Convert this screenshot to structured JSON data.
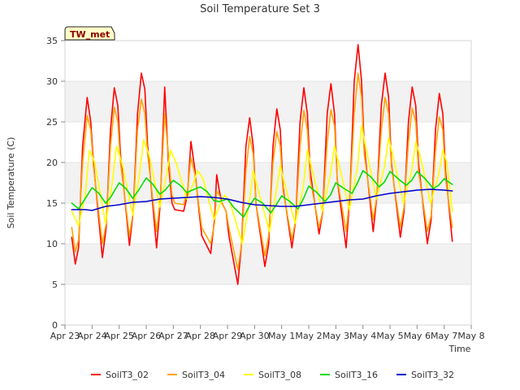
{
  "chart_data": {
    "type": "line",
    "title": "Soil Temperature Set 3",
    "xlabel": "Time",
    "ylabel": "Soil Temperature (C)",
    "badge": "TW_met",
    "xlim": [
      0,
      15
    ],
    "ylim": [
      0,
      35
    ],
    "x_ticks": [
      0,
      1,
      2,
      3,
      4,
      5,
      6,
      7,
      8,
      9,
      10,
      11,
      12,
      13,
      14,
      15
    ],
    "x_tick_labels": [
      "Apr 23",
      "Apr 24",
      "Apr 25",
      "Apr 26",
      "Apr 27",
      "Apr 28",
      "Apr 29",
      "Apr 30",
      "May 1",
      "May 2",
      "May 3",
      "May 4",
      "May 5",
      "May 6",
      "May 7",
      "May 8"
    ],
    "y_ticks": [
      0,
      5,
      10,
      15,
      20,
      25,
      30,
      35
    ],
    "y_tick_labels": [
      "0",
      "5",
      "10",
      "15",
      "20",
      "25",
      "30",
      "35"
    ],
    "grid": "horizontal bands",
    "legend_position": "bottom",
    "series": [
      {
        "name": "SoilT3_02",
        "color": "#ff0000",
        "x": [
          0.25,
          0.38,
          0.5,
          0.65,
          0.82,
          0.95,
          1.05,
          1.38,
          1.52,
          1.68,
          1.82,
          1.95,
          2.05,
          2.38,
          2.52,
          2.68,
          2.82,
          2.95,
          3.05,
          3.38,
          3.52,
          3.68,
          3.82,
          3.95,
          4.05,
          4.38,
          4.52,
          4.65,
          4.8,
          4.95,
          5.05,
          5.38,
          5.52,
          5.6,
          5.7,
          5.8,
          5.95,
          6.05,
          6.38,
          6.52,
          6.68,
          6.82,
          6.95,
          7.05,
          7.38,
          7.52,
          7.68,
          7.82,
          7.95,
          8.05,
          8.38,
          8.52,
          8.68,
          8.82,
          8.95,
          9.05,
          9.38,
          9.52,
          9.68,
          9.82,
          9.95,
          10.05,
          10.38,
          10.52,
          10.68,
          10.82,
          10.95,
          11.05,
          11.38,
          11.52,
          11.68,
          11.82,
          11.95,
          12.05,
          12.38,
          12.52,
          12.68,
          12.82,
          12.95,
          13.05,
          13.38,
          13.52,
          13.68,
          13.82,
          13.95,
          14.05,
          14.3
        ],
        "values": [
          10.8,
          7.5,
          9.5,
          22.0,
          28.0,
          25.0,
          20.0,
          8.3,
          12.0,
          24.0,
          29.2,
          27.0,
          21.0,
          9.8,
          14.0,
          26.0,
          31.0,
          29.0,
          22.0,
          9.5,
          15.0,
          29.3,
          20.0,
          15.0,
          14.2,
          14.0,
          16.0,
          22.6,
          19.0,
          14.0,
          11.0,
          8.8,
          13.0,
          18.5,
          16.5,
          15.0,
          14.0,
          11.0,
          5.0,
          10.0,
          22.0,
          25.5,
          22.0,
          15.0,
          7.2,
          10.0,
          22.0,
          26.6,
          24.0,
          17.0,
          9.5,
          13.0,
          25.0,
          29.2,
          26.0,
          19.0,
          11.2,
          14.0,
          26.0,
          29.7,
          26.0,
          18.0,
          9.5,
          16.0,
          30.0,
          34.5,
          30.0,
          22.0,
          11.5,
          16.0,
          27.0,
          31.0,
          28.0,
          20.0,
          10.8,
          14.0,
          25.0,
          29.3,
          27.0,
          20.0,
          10.0,
          13.0,
          24.0,
          28.5,
          26.0,
          19.0,
          10.3
        ]
      },
      {
        "name": "SoilT3_04",
        "color": "#ffa500",
        "x": [
          0.25,
          0.38,
          0.5,
          0.65,
          0.82,
          0.95,
          1.05,
          1.38,
          1.52,
          1.68,
          1.82,
          1.95,
          2.05,
          2.38,
          2.52,
          2.68,
          2.82,
          2.95,
          3.05,
          3.38,
          3.52,
          3.68,
          3.82,
          3.95,
          4.05,
          4.38,
          4.52,
          4.65,
          4.8,
          4.95,
          5.05,
          5.38,
          5.52,
          5.6,
          5.7,
          5.8,
          5.95,
          6.05,
          6.38,
          6.52,
          6.68,
          6.82,
          6.95,
          7.05,
          7.38,
          7.52,
          7.68,
          7.82,
          7.95,
          8.05,
          8.38,
          8.52,
          8.68,
          8.82,
          8.95,
          9.05,
          9.38,
          9.52,
          9.68,
          9.82,
          9.95,
          10.05,
          10.38,
          10.52,
          10.68,
          10.82,
          10.95,
          11.05,
          11.38,
          11.52,
          11.68,
          11.82,
          11.95,
          12.05,
          12.38,
          12.52,
          12.68,
          12.82,
          12.95,
          13.05,
          13.38,
          13.52,
          13.68,
          13.82,
          13.95,
          14.05,
          14.3
        ],
        "values": [
          12.0,
          9.0,
          10.5,
          20.0,
          25.8,
          24.0,
          19.5,
          10.0,
          12.5,
          22.0,
          26.8,
          25.0,
          20.0,
          11.0,
          14.0,
          24.0,
          27.8,
          26.0,
          21.0,
          11.5,
          15.5,
          26.0,
          21.0,
          16.0,
          15.0,
          14.8,
          16.5,
          20.6,
          18.5,
          14.5,
          12.0,
          10.0,
          12.5,
          16.5,
          16.0,
          15.0,
          14.0,
          12.0,
          6.8,
          10.0,
          19.0,
          23.2,
          21.0,
          15.0,
          8.5,
          11.0,
          20.0,
          23.8,
          22.0,
          16.5,
          10.5,
          13.0,
          22.0,
          26.4,
          24.0,
          18.0,
          12.0,
          14.0,
          22.5,
          26.5,
          24.5,
          18.0,
          11.5,
          16.0,
          26.0,
          31.0,
          28.0,
          21.0,
          13.0,
          16.0,
          24.0,
          28.0,
          26.0,
          19.5,
          12.0,
          14.5,
          22.5,
          26.7,
          25.0,
          19.0,
          11.5,
          13.5,
          21.5,
          25.6,
          24.0,
          18.0,
          12.0
        ]
      },
      {
        "name": "SoilT3_08",
        "color": "#ffff00",
        "x": [
          0.25,
          0.5,
          0.75,
          0.9,
          1.1,
          1.5,
          1.75,
          1.9,
          2.1,
          2.5,
          2.75,
          2.9,
          3.1,
          3.5,
          3.75,
          3.9,
          4.1,
          4.5,
          4.75,
          4.9,
          5.1,
          5.5,
          5.75,
          5.9,
          6.1,
          6.55,
          6.8,
          6.95,
          7.1,
          7.55,
          7.8,
          7.95,
          8.1,
          8.5,
          8.8,
          8.95,
          9.1,
          9.5,
          9.8,
          9.95,
          10.1,
          10.5,
          10.8,
          10.95,
          11.1,
          11.5,
          11.8,
          11.95,
          12.1,
          12.5,
          12.8,
          12.95,
          13.1,
          13.5,
          13.8,
          13.95,
          14.1,
          14.3
        ],
        "values": [
          14.0,
          12.2,
          16.0,
          21.5,
          20.0,
          12.5,
          17.5,
          22.0,
          20.0,
          13.5,
          18.5,
          22.8,
          21.0,
          14.5,
          18.5,
          21.5,
          20.0,
          15.5,
          17.5,
          19.0,
          18.0,
          13.0,
          15.0,
          16.0,
          15.0,
          10.0,
          15.0,
          19.0,
          17.0,
          11.5,
          16.5,
          19.6,
          17.5,
          12.5,
          17.0,
          21.5,
          19.5,
          14.0,
          18.5,
          22.0,
          20.0,
          14.2,
          19.5,
          24.5,
          22.0,
          15.5,
          19.5,
          23.0,
          21.0,
          15.0,
          19.0,
          22.5,
          21.0,
          15.0,
          18.5,
          21.5,
          20.0,
          14.0
        ]
      },
      {
        "name": "SoilT3_16",
        "color": "#00dd00",
        "x": [
          0.25,
          0.5,
          0.7,
          1.0,
          1.25,
          1.5,
          1.7,
          2.0,
          2.25,
          2.5,
          2.7,
          3.0,
          3.25,
          3.5,
          3.7,
          4.0,
          4.25,
          4.5,
          4.7,
          5.0,
          5.25,
          5.5,
          5.7,
          6.0,
          6.25,
          6.6,
          6.8,
          7.0,
          7.3,
          7.6,
          7.8,
          8.0,
          8.3,
          8.6,
          8.8,
          9.0,
          9.3,
          9.6,
          9.8,
          10.0,
          10.3,
          10.6,
          10.8,
          11.0,
          11.3,
          11.6,
          11.8,
          12.0,
          12.3,
          12.6,
          12.8,
          13.0,
          13.3,
          13.6,
          13.8,
          14.0,
          14.3
        ],
        "values": [
          15.0,
          14.3,
          15.3,
          16.9,
          16.2,
          15.0,
          15.8,
          17.5,
          16.8,
          15.6,
          16.5,
          18.1,
          17.3,
          16.1,
          16.6,
          17.8,
          17.2,
          16.3,
          16.6,
          17.0,
          16.4,
          15.3,
          15.2,
          15.5,
          14.4,
          13.3,
          14.6,
          15.6,
          15.0,
          13.8,
          14.8,
          15.9,
          15.2,
          14.3,
          15.5,
          17.1,
          16.3,
          15.2,
          16.0,
          17.5,
          16.8,
          16.2,
          17.5,
          19.0,
          18.2,
          17.0,
          17.6,
          18.9,
          18.0,
          17.2,
          17.8,
          18.9,
          18.0,
          16.8,
          17.2,
          18.0,
          17.3
        ]
      },
      {
        "name": "SoilT3_32",
        "color": "#0000cc",
        "x": [
          0.25,
          0.75,
          1.0,
          1.5,
          2.0,
          2.5,
          3.0,
          3.5,
          4.0,
          4.5,
          5.0,
          5.5,
          6.0,
          6.5,
          7.0,
          7.5,
          8.0,
          8.5,
          9.0,
          9.5,
          10.0,
          10.5,
          11.0,
          11.5,
          12.0,
          12.5,
          13.0,
          13.5,
          14.0,
          14.3
        ],
        "values": [
          14.2,
          14.2,
          14.1,
          14.6,
          14.8,
          15.1,
          15.2,
          15.5,
          15.6,
          15.7,
          15.8,
          15.7,
          15.5,
          15.1,
          14.8,
          14.7,
          14.6,
          14.6,
          14.8,
          15.0,
          15.2,
          15.4,
          15.5,
          15.9,
          16.2,
          16.4,
          16.6,
          16.7,
          16.6,
          16.5
        ]
      }
    ]
  }
}
